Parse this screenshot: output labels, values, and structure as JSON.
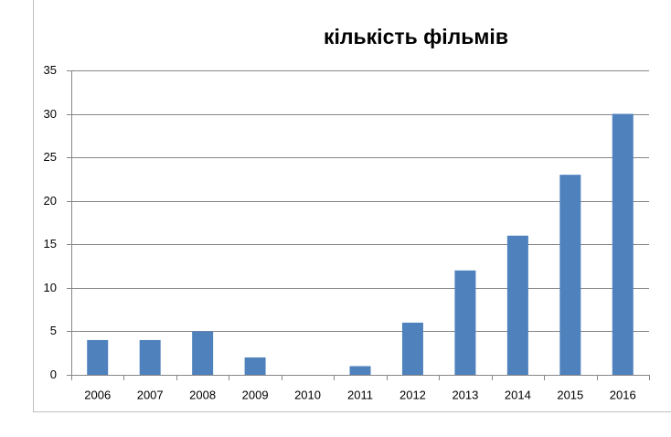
{
  "chart_data": {
    "type": "bar",
    "title": "кількість фільмів",
    "categories": [
      "2006",
      "2007",
      "2008",
      "2009",
      "2010",
      "2011",
      "2012",
      "2013",
      "2014",
      "2015",
      "2016"
    ],
    "values": [
      4,
      4,
      5,
      2,
      0,
      1,
      6,
      12,
      16,
      23,
      30
    ],
    "color": "#4f81bd",
    "ylim": [
      0,
      35
    ],
    "yticks": [
      0,
      5,
      10,
      15,
      20,
      25,
      30,
      35
    ],
    "grid": true
  }
}
